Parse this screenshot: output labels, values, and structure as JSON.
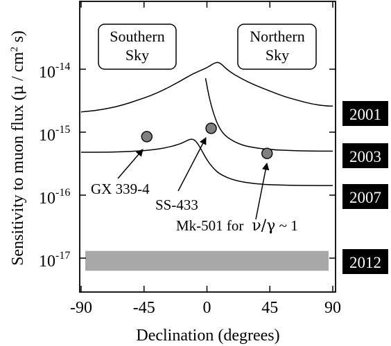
{
  "chart_data": {
    "type": "line",
    "xlabel": "Declination (degrees)",
    "ylabel": "Sensitivity to muon flux",
    "ylabel_unit_parts": [
      "(",
      "μ",
      " / cm",
      "2",
      " s)"
    ],
    "xlim": [
      -90,
      90
    ],
    "log_scale_y": true,
    "ylim": [
      5e-18,
      1e-13
    ],
    "x_ticks": [
      {
        "value": -90,
        "label": "-90"
      },
      {
        "value": -45,
        "label": "-45"
      },
      {
        "value": 0,
        "label": "0"
      },
      {
        "value": 45,
        "label": "45"
      },
      {
        "value": 90,
        "label": "90"
      }
    ],
    "y_ticks": [
      {
        "value": 1e-14,
        "base": "10",
        "exp": "-14"
      },
      {
        "value": 1e-15,
        "base": "10",
        "exp": "-15"
      },
      {
        "value": 1e-16,
        "base": "10",
        "exp": "-16"
      },
      {
        "value": 1e-17,
        "base": "10",
        "exp": "-17"
      }
    ],
    "grid": false,
    "series": [
      {
        "name": "2001",
        "points": [
          [
            -90,
            2.1e-15
          ],
          [
            -80,
            2.2e-15
          ],
          [
            -70,
            2.4e-15
          ],
          [
            -60,
            2.7e-15
          ],
          [
            -50,
            3.2e-15
          ],
          [
            -40,
            3.8e-15
          ],
          [
            -30,
            4.8e-15
          ],
          [
            -20,
            6.3e-15
          ],
          [
            -10,
            8.5e-15
          ],
          [
            0,
            1.05e-14
          ],
          [
            5,
            1.25e-14
          ],
          [
            9,
            1.3e-14
          ],
          [
            15,
            9.5e-15
          ],
          [
            25,
            7e-15
          ],
          [
            35,
            5.5e-15
          ],
          [
            45,
            4.5e-15
          ],
          [
            55,
            3.7e-15
          ],
          [
            65,
            3.2e-15
          ],
          [
            75,
            2.8e-15
          ],
          [
            85,
            2.6e-15
          ],
          [
            90,
            2.6e-15
          ]
        ]
      },
      {
        "name": "2003",
        "points": [
          [
            -1,
            7.2e-15
          ],
          [
            2,
            3.2e-15
          ],
          [
            6,
            1.6e-15
          ],
          [
            10,
            1.05e-15
          ],
          [
            15,
            8e-16
          ],
          [
            25,
            6.2e-16
          ],
          [
            35,
            5.6e-16
          ],
          [
            45,
            5.3e-16
          ],
          [
            60,
            5.1e-16
          ],
          [
            75,
            5e-16
          ],
          [
            90,
            5e-16
          ]
        ]
      },
      {
        "name": "2007",
        "points": [
          [
            -90,
            4.8e-16
          ],
          [
            -70,
            4.8e-16
          ],
          [
            -50,
            5e-16
          ],
          [
            -40,
            5.2e-16
          ],
          [
            -30,
            5.6e-16
          ],
          [
            -20,
            6.4e-16
          ],
          [
            -15,
            7.2e-16
          ],
          [
            -11,
            7.9e-16
          ],
          [
            -8,
            7.3e-16
          ],
          [
            -5,
            5.8e-16
          ],
          [
            0,
            3.6e-16
          ],
          [
            5,
            2.6e-16
          ],
          [
            10,
            2.1e-16
          ],
          [
            20,
            1.7e-16
          ],
          [
            35,
            1.5e-16
          ],
          [
            50,
            1.45e-16
          ],
          [
            70,
            1.42e-16
          ],
          [
            90,
            1.42e-16
          ]
        ]
      }
    ],
    "band": {
      "name": "2012",
      "x": [
        -87,
        87
      ],
      "y": [
        6.3e-18,
        1.3e-17
      ],
      "color": "#a8a8a8"
    },
    "sources": [
      {
        "name": "GX 339-4",
        "x": -43,
        "y": 8.5e-16
      },
      {
        "name": "SS-433",
        "x": 3,
        "y": 1.15e-15
      },
      {
        "name": "Mk-501 for",
        "x": 43,
        "y": 4.6e-16
      }
    ],
    "source_note": {
      "prefix": "ν/γ",
      "suffix": " ~ 1"
    },
    "boxes": [
      {
        "lines": [
          "Southern",
          "Sky"
        ]
      },
      {
        "lines": [
          "Northern",
          "Sky"
        ]
      }
    ],
    "year_labels": [
      "2001",
      "2003",
      "2007",
      "2012"
    ],
    "point_color": "#808080"
  }
}
